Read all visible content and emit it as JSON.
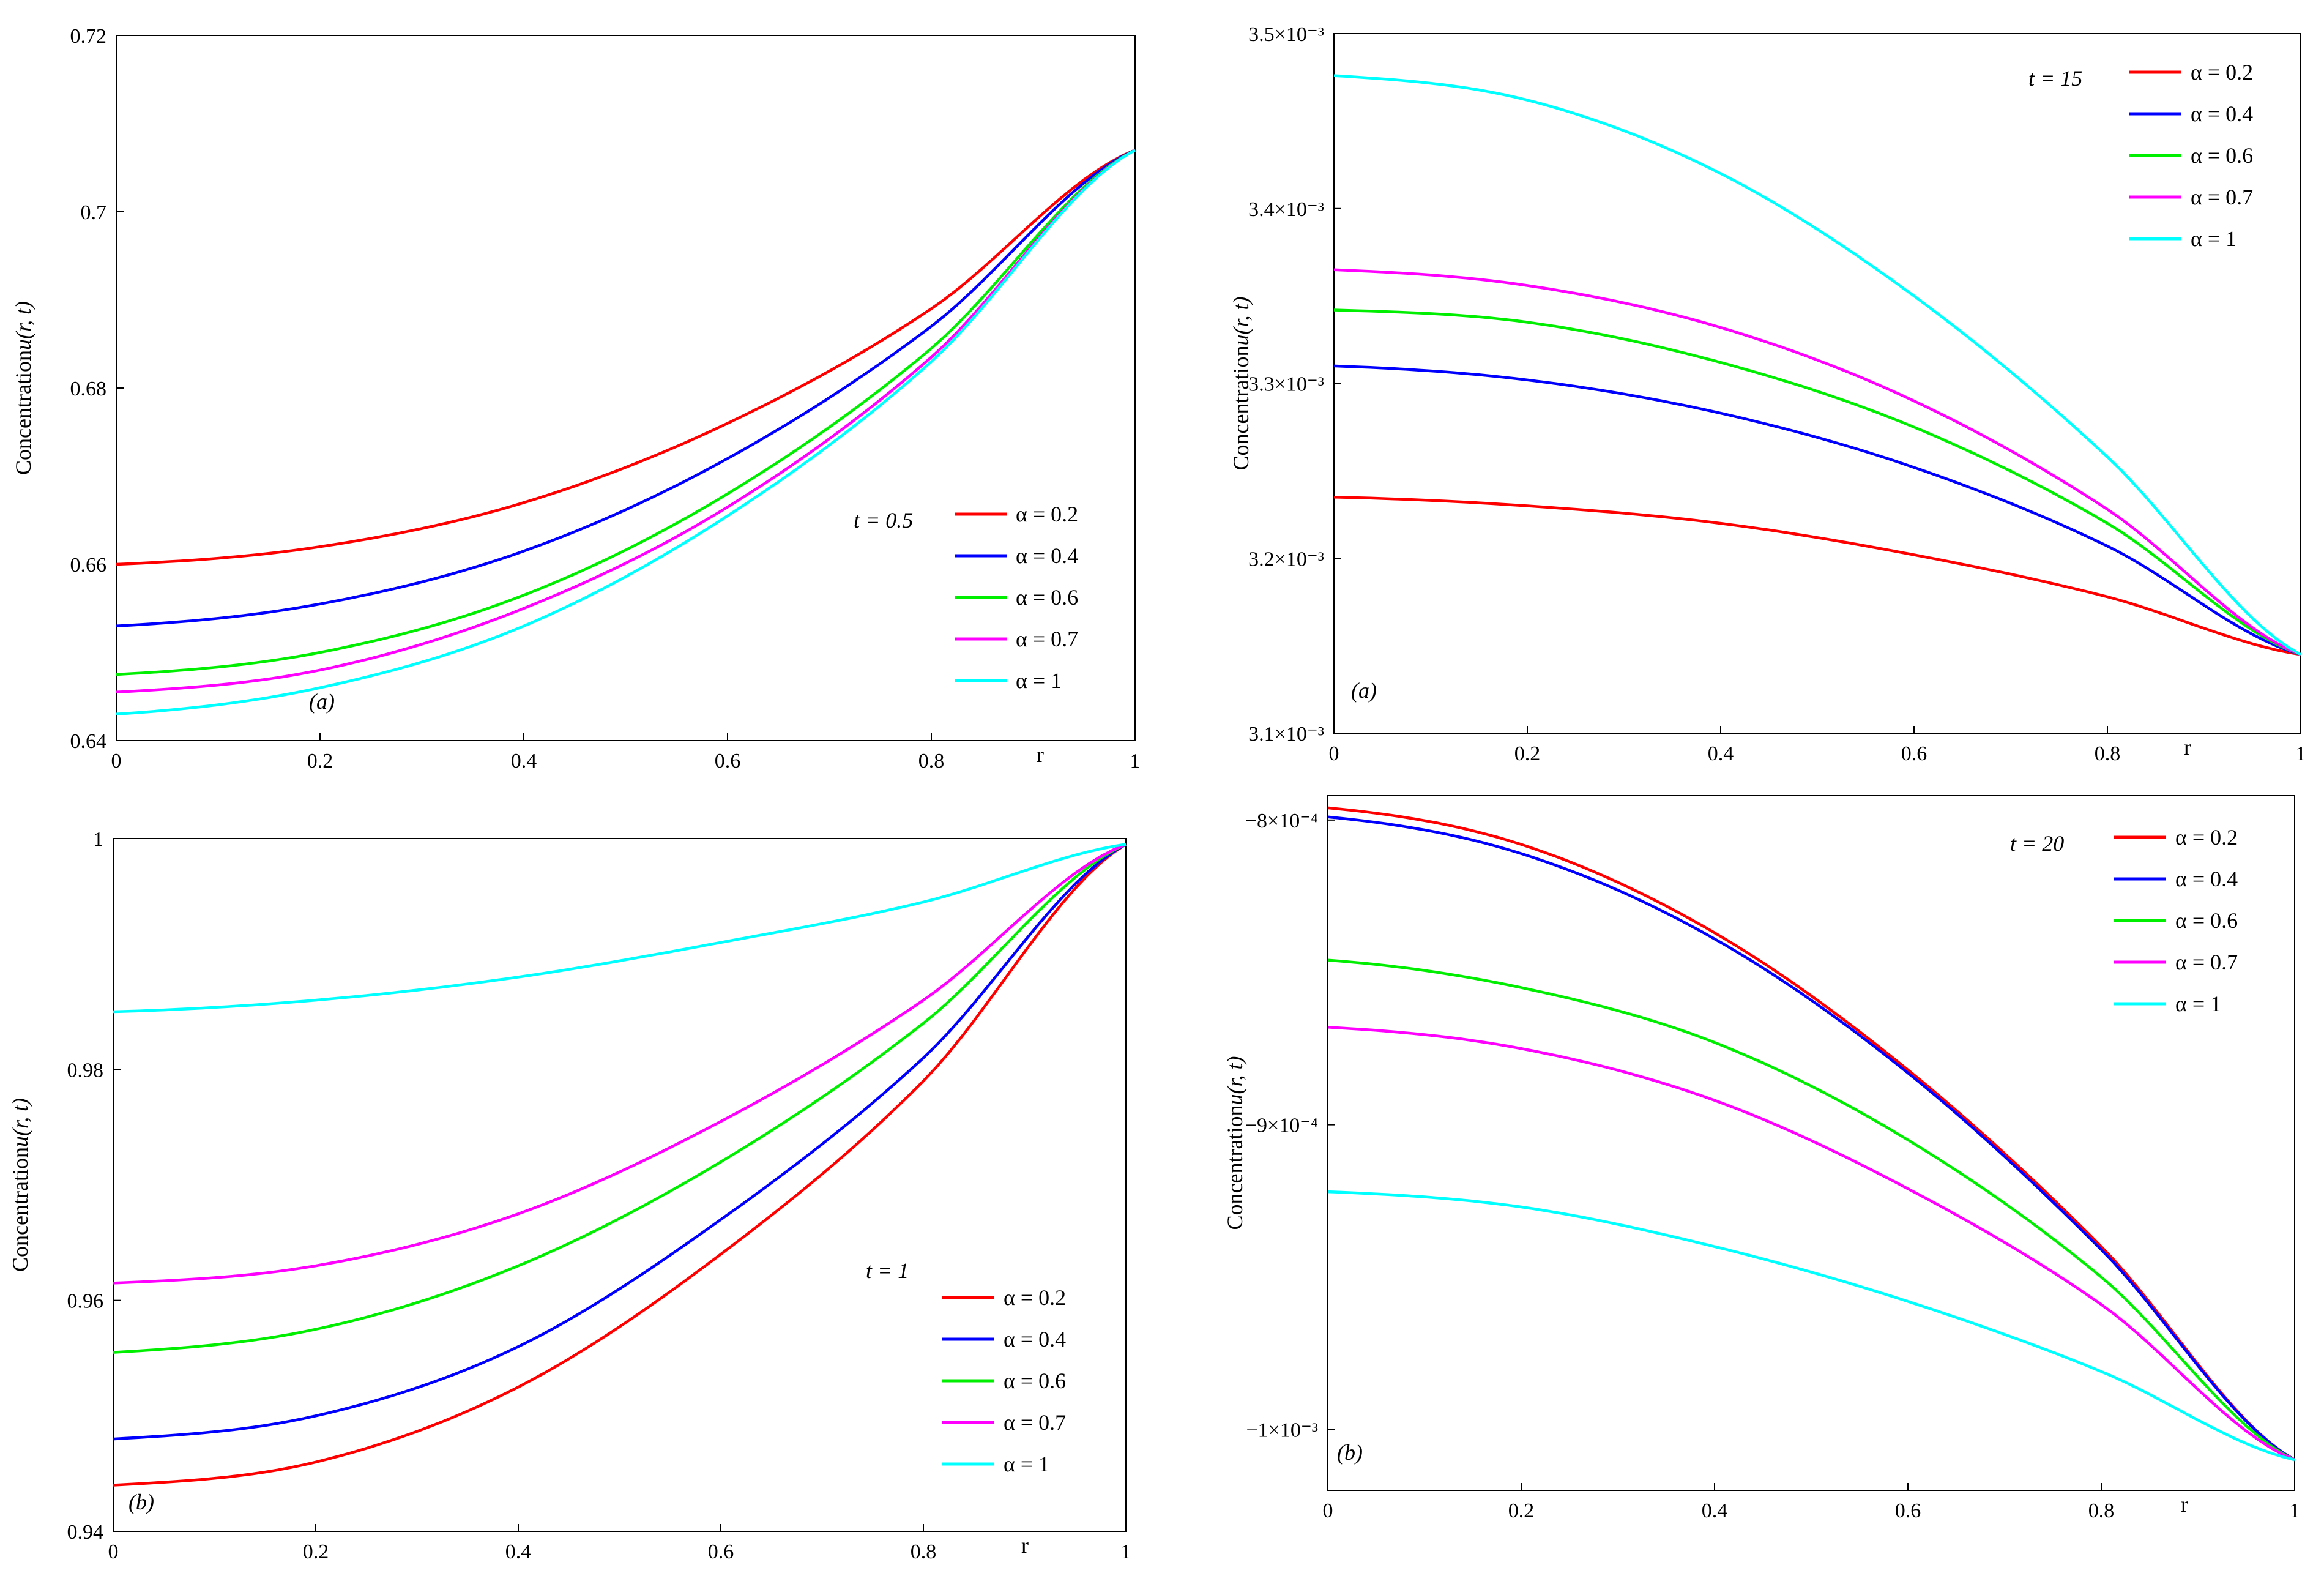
{
  "colors": {
    "red": "#ff0000",
    "blue": "#0000ff",
    "green": "#00ee00",
    "magenta": "#ff00ff",
    "cyan": "#00ffff"
  },
  "chart_data": [
    {
      "id": "top-left",
      "type": "line",
      "ylabel_prefix": "Concentration",
      "ylabel_func": "u(r, t)",
      "xlabel": "r",
      "panel_label": "(a)",
      "time_label": "t = 0.5",
      "xlim": [
        0,
        1
      ],
      "ylim": [
        0.64,
        0.72
      ],
      "xticks": [
        "0",
        "0.2",
        "0.4",
        "0.6",
        "0.8",
        "1"
      ],
      "yticks": [
        "0.64",
        "0.66",
        "0.68",
        "0.7",
        "0.72"
      ],
      "series": [
        {
          "name": "α = 0.2",
          "color": "red",
          "x": [
            0,
            0.2,
            0.4,
            0.6,
            0.8,
            1
          ],
          "values": [
            0.66,
            0.662,
            0.667,
            0.676,
            0.689,
            0.707
          ]
        },
        {
          "name": "α = 0.4",
          "color": "blue",
          "x": [
            0,
            0.2,
            0.4,
            0.6,
            0.8,
            1
          ],
          "values": [
            0.653,
            0.6555,
            0.6615,
            0.672,
            0.687,
            0.707
          ]
        },
        {
          "name": "α = 0.6",
          "color": "green",
          "x": [
            0,
            0.2,
            0.4,
            0.6,
            0.8,
            1
          ],
          "values": [
            0.6475,
            0.65,
            0.6565,
            0.668,
            0.6845,
            0.707
          ]
        },
        {
          "name": "α = 0.7",
          "color": "magenta",
          "x": [
            0,
            0.2,
            0.4,
            0.6,
            0.8,
            1
          ],
          "values": [
            0.6455,
            0.648,
            0.655,
            0.6665,
            0.6835,
            0.707
          ]
        },
        {
          "name": "α = 1",
          "color": "cyan",
          "x": [
            0,
            0.2,
            0.4,
            0.6,
            0.8,
            1
          ],
          "values": [
            0.643,
            0.646,
            0.653,
            0.6655,
            0.683,
            0.707
          ]
        }
      ]
    },
    {
      "id": "top-right",
      "type": "line",
      "ylabel_prefix": "Concentration",
      "ylabel_func": "u(r, t)",
      "xlabel": "r",
      "panel_label": "(a)",
      "time_label": "t = 15",
      "xlim": [
        0,
        1
      ],
      "ylim": [
        0.0031,
        0.0035
      ],
      "xticks": [
        "0",
        "0.2",
        "0.4",
        "0.6",
        "0.8",
        "1"
      ],
      "yticks": [
        "3.1×10⁻³",
        "3.2×10⁻³",
        "3.3×10⁻³",
        "3.4×10⁻³",
        "3.5×10⁻³"
      ],
      "series": [
        {
          "name": "α = 0.2",
          "color": "red",
          "x": [
            0,
            0.2,
            0.4,
            0.6,
            0.8,
            1
          ],
          "values": [
            0.003235,
            0.00323,
            0.00322,
            0.003202,
            0.003178,
            0.003145
          ]
        },
        {
          "name": "α = 0.4",
          "color": "blue",
          "x": [
            0,
            0.2,
            0.4,
            0.6,
            0.8,
            1
          ],
          "values": [
            0.00331,
            0.003302,
            0.003283,
            0.003252,
            0.003207,
            0.003145
          ]
        },
        {
          "name": "α = 0.6",
          "color": "green",
          "x": [
            0,
            0.2,
            0.4,
            0.6,
            0.8,
            1
          ],
          "values": [
            0.003342,
            0.003335,
            0.003312,
            0.003275,
            0.00322,
            0.003145
          ]
        },
        {
          "name": "α = 0.7",
          "color": "magenta",
          "x": [
            0,
            0.2,
            0.4,
            0.6,
            0.8,
            1
          ],
          "values": [
            0.003365,
            0.003356,
            0.003332,
            0.00329,
            0.003228,
            0.003145
          ]
        },
        {
          "name": "α = 1",
          "color": "cyan",
          "x": [
            0,
            0.2,
            0.4,
            0.6,
            0.8,
            1
          ],
          "values": [
            0.003476,
            0.003462,
            0.00342,
            0.00335,
            0.003258,
            0.003145
          ]
        }
      ],
      "legend_marks": [
        "α = 0.2",
        "α = 0.4",
        "α = 0.6",
        "α = 0.7",
        "α = 1"
      ]
    },
    {
      "id": "bottom-left",
      "type": "line",
      "ylabel_prefix": "Concentration",
      "ylabel_func": "u(r, t)",
      "xlabel": "r",
      "panel_label": "(b)",
      "time_label": "t = 1",
      "xlim": [
        0,
        1
      ],
      "ylim": [
        0.94,
        1.0
      ],
      "xticks": [
        "0",
        "0.2",
        "0.4",
        "0.6",
        "0.8",
        "1"
      ],
      "yticks": [
        "0.94",
        "0.96",
        "0.98",
        "1"
      ],
      "series": [
        {
          "name": "α = 0.2",
          "color": "red",
          "x": [
            0,
            0.2,
            0.4,
            0.6,
            0.8,
            1
          ],
          "values": [
            0.944,
            0.946,
            0.9525,
            0.964,
            0.979,
            0.9995
          ]
        },
        {
          "name": "α = 0.4",
          "color": "blue",
          "x": [
            0,
            0.2,
            0.4,
            0.6,
            0.8,
            1
          ],
          "values": [
            0.948,
            0.95,
            0.956,
            0.967,
            0.981,
            0.9995
          ]
        },
        {
          "name": "α = 0.6",
          "color": "green",
          "x": [
            0,
            0.2,
            0.4,
            0.6,
            0.8,
            1
          ],
          "values": [
            0.9555,
            0.9575,
            0.963,
            0.972,
            0.984,
            0.9995
          ]
        },
        {
          "name": "α = 0.7",
          "color": "magenta",
          "x": [
            0,
            0.2,
            0.4,
            0.6,
            0.8,
            1
          ],
          "values": [
            0.9615,
            0.963,
            0.9675,
            0.9755,
            0.986,
            0.9995
          ]
        },
        {
          "name": "α = 1",
          "color": "cyan",
          "x": [
            0,
            0.2,
            0.4,
            0.6,
            0.8,
            1
          ],
          "values": [
            0.985,
            0.986,
            0.988,
            0.991,
            0.9945,
            0.9995
          ]
        }
      ]
    },
    {
      "id": "bottom-right",
      "type": "line",
      "ylabel_prefix": "Concentration",
      "ylabel_func": "u(r, t)",
      "xlabel": "r",
      "panel_label": "(b)",
      "time_label": "t = 20",
      "xlim": [
        0,
        1
      ],
      "ylim": [
        -0.00102,
        -0.000792
      ],
      "xticks": [
        "0",
        "0.2",
        "0.4",
        "0.6",
        "0.8",
        "1"
      ],
      "ytick_values": [
        -0.001,
        -0.0009,
        -0.0008
      ],
      "yticks": [
        "−1×10⁻³",
        "−9×10⁻⁴",
        "−8×10⁻⁴"
      ],
      "series": [
        {
          "name": "α = 0.2",
          "color": "red",
          "x": [
            0,
            0.2,
            0.4,
            0.6,
            0.8,
            1
          ],
          "values": [
            -0.000796,
            -0.000808,
            -0.000837,
            -0.000882,
            -0.00094,
            -0.00101
          ]
        },
        {
          "name": "α = 0.4",
          "color": "blue",
          "x": [
            0,
            0.2,
            0.4,
            0.6,
            0.8,
            1
          ],
          "values": [
            -0.000799,
            -0.000811,
            -0.000839,
            -0.000883,
            -0.000941,
            -0.00101
          ]
        },
        {
          "name": "α = 0.6",
          "color": "green",
          "x": [
            0,
            0.2,
            0.4,
            0.6,
            0.8,
            1
          ],
          "values": [
            -0.000846,
            -0.000855,
            -0.000873,
            -0.000905,
            -0.00095,
            -0.00101
          ]
        },
        {
          "name": "α = 0.7",
          "color": "magenta",
          "x": [
            0,
            0.2,
            0.4,
            0.6,
            0.8,
            1
          ],
          "values": [
            -0.000868,
            -0.000875,
            -0.000892,
            -0.000921,
            -0.000959,
            -0.00101
          ]
        },
        {
          "name": "α = 1",
          "color": "cyan",
          "x": [
            0,
            0.2,
            0.4,
            0.6,
            0.8,
            1
          ],
          "values": [
            -0.000922,
            -0.000927,
            -0.00094,
            -0.000958,
            -0.000981,
            -0.00101
          ]
        }
      ]
    }
  ]
}
